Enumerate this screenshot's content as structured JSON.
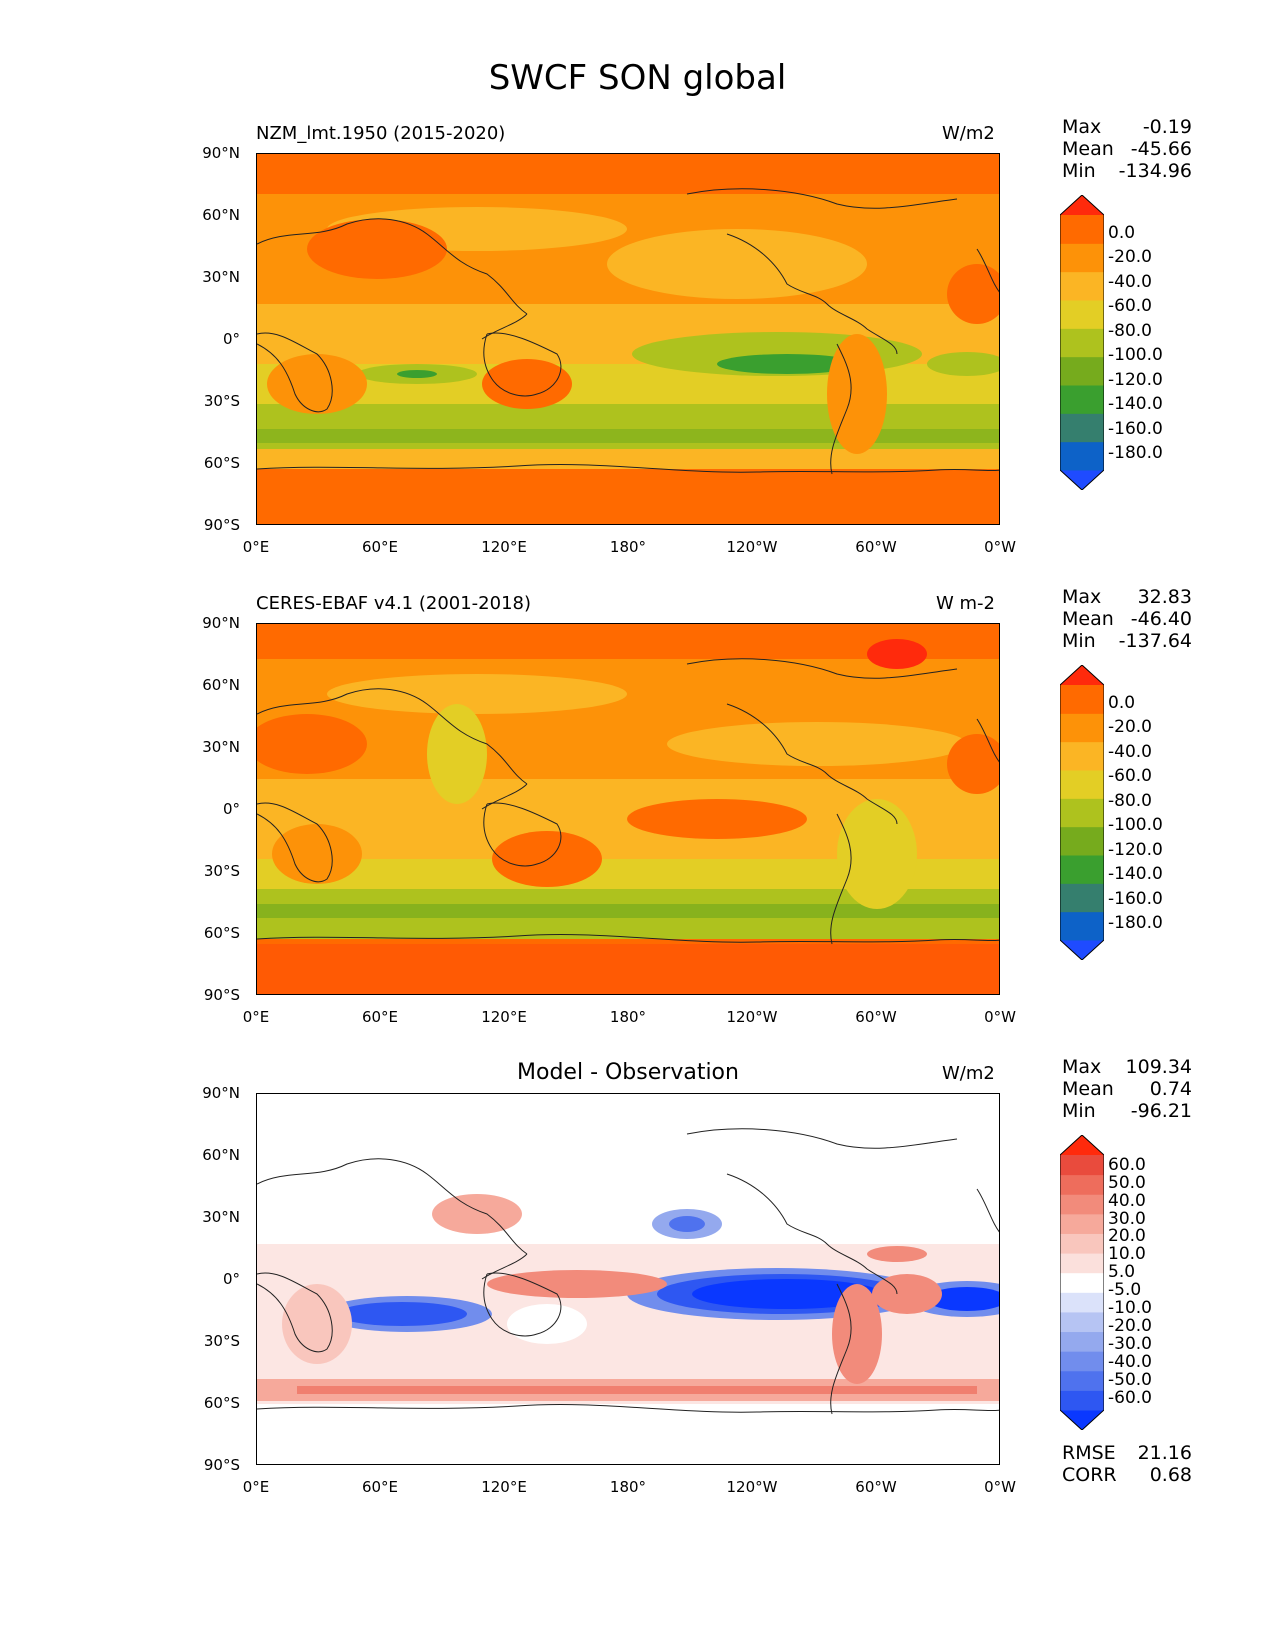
{
  "figure_title": "SWCF SON global",
  "axes": {
    "lat_labels": [
      "90°N",
      "60°N",
      "30°N",
      "0°",
      "30°S",
      "60°S",
      "90°S"
    ],
    "lon_labels": [
      "0°E",
      "60°E",
      "120°E",
      "180°",
      "120°W",
      "60°W",
      "0°W"
    ]
  },
  "panels": [
    {
      "title_left": "NZM_lmt.1950 (2015-2020)",
      "title_center": "",
      "units": "W/m2",
      "stats": [
        {
          "label": "Max",
          "value": "-0.19"
        },
        {
          "label": "Mean",
          "value": "-45.66"
        },
        {
          "label": "Min",
          "value": "-134.96"
        }
      ],
      "colorbar": {
        "colors": [
          "#1f4bff",
          "#0d62c8",
          "#357f6e",
          "#3a9f2f",
          "#76ab1d",
          "#aec21e",
          "#e3ce25",
          "#fbb524",
          "#fd9208",
          "#ff6a00",
          "#ff2a0c"
        ],
        "labels": [
          "0.0",
          "-20.0",
          "-40.0",
          "-60.0",
          "-80.0",
          "-100.0",
          "-120.0",
          "-140.0",
          "-160.0",
          "-180.0"
        ]
      }
    },
    {
      "title_left": "CERES-EBAF v4.1 (2001-2018)",
      "title_center": "",
      "units": "W m-2",
      "stats": [
        {
          "label": "Max",
          "value": "32.83"
        },
        {
          "label": "Mean",
          "value": "-46.40"
        },
        {
          "label": "Min",
          "value": "-137.64"
        }
      ],
      "colorbar": {
        "colors": [
          "#1f4bff",
          "#0d62c8",
          "#357f6e",
          "#3a9f2f",
          "#76ab1d",
          "#aec21e",
          "#e3ce25",
          "#fbb524",
          "#fd9208",
          "#ff6a00",
          "#ff2a0c"
        ],
        "labels": [
          "0.0",
          "-20.0",
          "-40.0",
          "-60.0",
          "-80.0",
          "-100.0",
          "-120.0",
          "-140.0",
          "-160.0",
          "-180.0"
        ]
      }
    },
    {
      "title_left": "",
      "title_center": "Model - Observation",
      "units": "W/m2",
      "stats": [
        {
          "label": "Max",
          "value": "109.34"
        },
        {
          "label": "Mean",
          "value": "0.74"
        },
        {
          "label": "Min",
          "value": "-96.21"
        }
      ],
      "extra_stats": [
        {
          "label": "RMSE",
          "value": "21.16"
        },
        {
          "label": "CORR",
          "value": "0.68"
        }
      ],
      "colorbar": {
        "colors": [
          "#0a38ff",
          "#2e57f2",
          "#4f72ee",
          "#718ded",
          "#94a9ee",
          "#b6c4f3",
          "#dbe2fa",
          "#ffffff",
          "#fbe0dc",
          "#f9c6bd",
          "#f6a99b",
          "#f28b7b",
          "#ee6d5c",
          "#e94b3d",
          "#ff2a0c"
        ],
        "labels": [
          "60.0",
          "50.0",
          "40.0",
          "30.0",
          "20.0",
          "10.0",
          "5.0",
          "-5.0",
          "-10.0",
          "-20.0",
          "-30.0",
          "-40.0",
          "-50.0",
          "-60.0"
        ]
      }
    }
  ]
}
